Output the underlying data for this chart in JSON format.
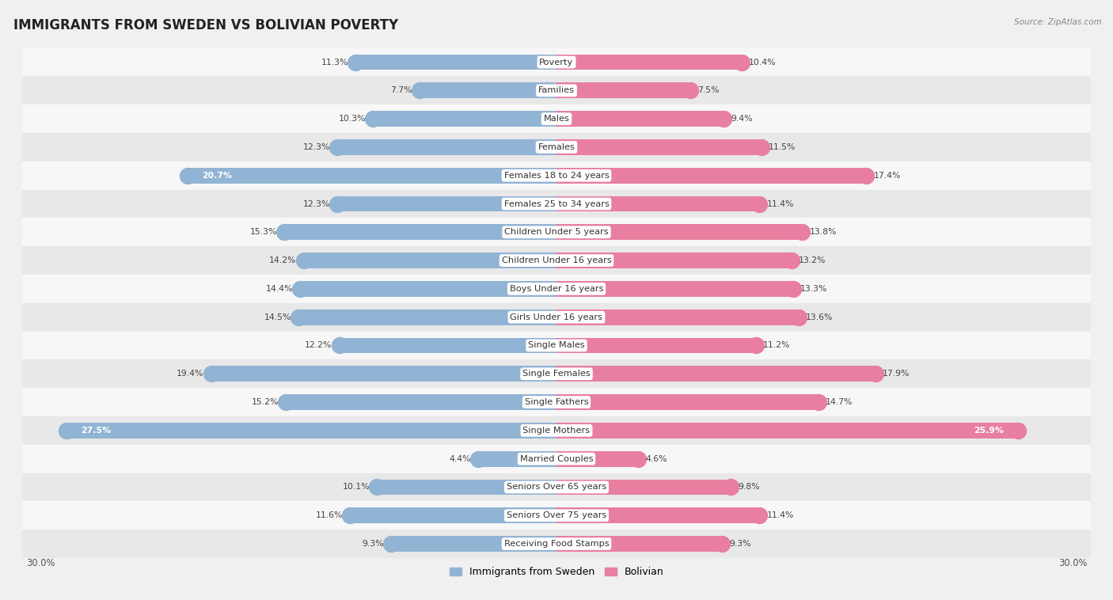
{
  "title": "IMMIGRANTS FROM SWEDEN VS BOLIVIAN POVERTY",
  "source": "Source: ZipAtlas.com",
  "categories": [
    "Poverty",
    "Families",
    "Males",
    "Females",
    "Females 18 to 24 years",
    "Females 25 to 34 years",
    "Children Under 5 years",
    "Children Under 16 years",
    "Boys Under 16 years",
    "Girls Under 16 years",
    "Single Males",
    "Single Females",
    "Single Fathers",
    "Single Mothers",
    "Married Couples",
    "Seniors Over 65 years",
    "Seniors Over 75 years",
    "Receiving Food Stamps"
  ],
  "sweden_values": [
    11.3,
    7.7,
    10.3,
    12.3,
    20.7,
    12.3,
    15.3,
    14.2,
    14.4,
    14.5,
    12.2,
    19.4,
    15.2,
    27.5,
    4.4,
    10.1,
    11.6,
    9.3
  ],
  "bolivian_values": [
    10.4,
    7.5,
    9.4,
    11.5,
    17.4,
    11.4,
    13.8,
    13.2,
    13.3,
    13.6,
    11.2,
    17.9,
    14.7,
    25.9,
    4.6,
    9.8,
    11.4,
    9.3
  ],
  "sweden_color": "#92b4d4",
  "bolivian_color": "#e87fa0",
  "background_color": "#f0f0f0",
  "row_light_color": "#f7f7f7",
  "row_dark_color": "#e8e8e8",
  "xlim": 30.0,
  "bar_height": 0.55,
  "legend_labels": [
    "Immigrants from Sweden",
    "Bolivian"
  ],
  "title_fontsize": 12,
  "label_fontsize": 8.2,
  "value_fontsize": 7.8
}
